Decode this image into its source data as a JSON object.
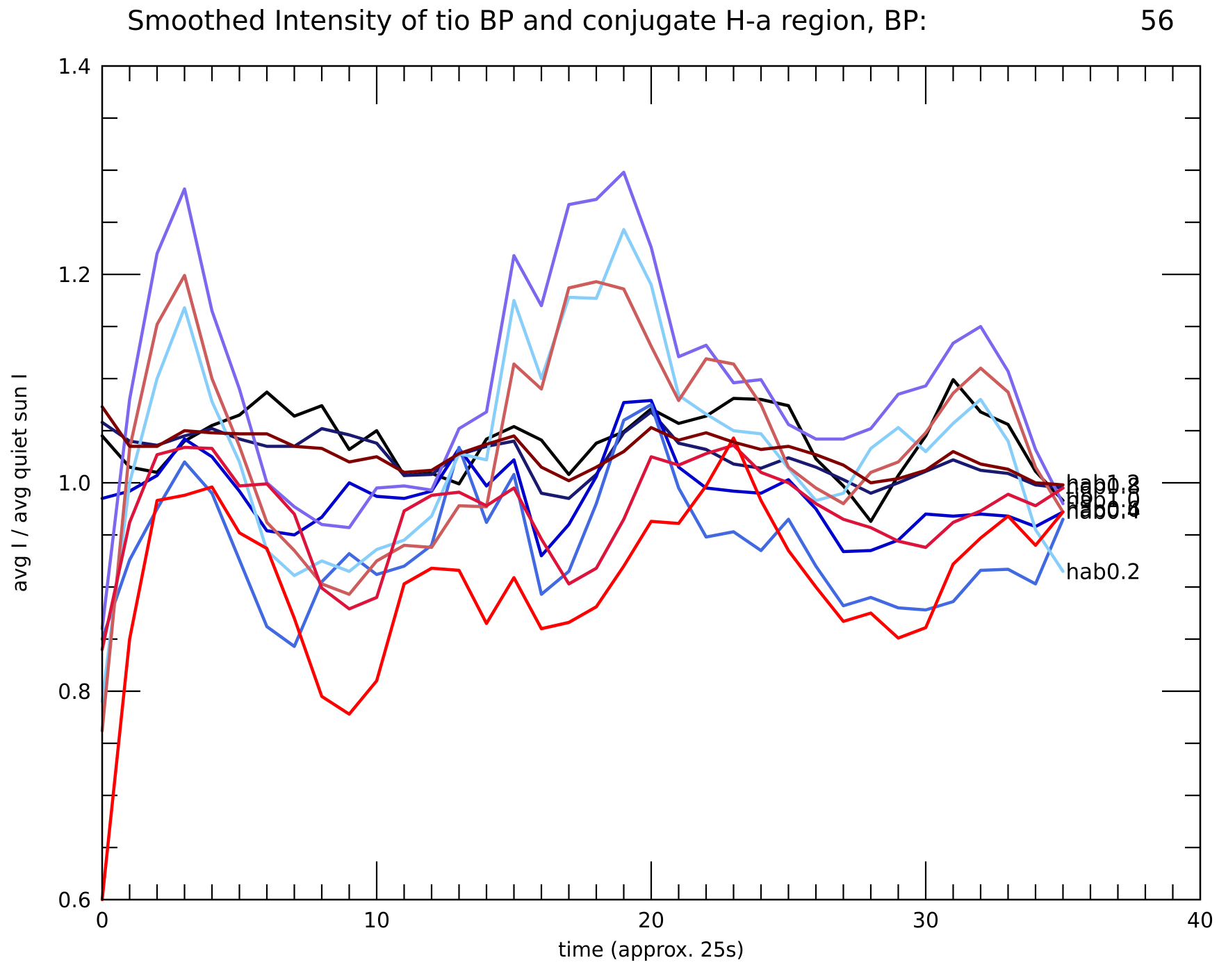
{
  "chart_data": {
    "type": "line",
    "title": "Smoothed Intensity of tio BP and conjugate H-a region, BP:",
    "title_value": "56",
    "xlabel": "time (approx. 25s)",
    "ylabel": "avg I / avg quiet sun I",
    "xlim": [
      0,
      40
    ],
    "ylim": [
      0.6,
      1.4
    ],
    "x_ticks": [
      "0",
      "10",
      "20",
      "30",
      "40"
    ],
    "y_ticks": [
      "0.6",
      "0.8",
      "1.0",
      "1.2",
      "1.4"
    ],
    "grid": false,
    "x": [
      0,
      1,
      2,
      3,
      4,
      5,
      6,
      7,
      8,
      9,
      10,
      11,
      12,
      13,
      14,
      15,
      16,
      17,
      18,
      19,
      20,
      21,
      22,
      23,
      24,
      25,
      26,
      27,
      28,
      29,
      30,
      31,
      32,
      33,
      34,
      35
    ],
    "series": [
      {
        "color": "#000000",
        "values": [
          1.045,
          1.015,
          1.01,
          1.04,
          1.055,
          1.065,
          1.087,
          1.064,
          1.074,
          1.032,
          1.05,
          1.007,
          1.009,
          0.999,
          1.042,
          1.054,
          1.041,
          1.008,
          1.038,
          1.049,
          1.071,
          1.057,
          1.064,
          1.081,
          1.08,
          1.074,
          1.023,
          0.997,
          0.963,
          1.007,
          1.045,
          1.099,
          1.068,
          1.056,
          1.011,
          0.983
        ]
      },
      {
        "color": "#191970",
        "values": [
          1.058,
          1.04,
          1.036,
          1.045,
          1.052,
          1.042,
          1.035,
          1.035,
          1.052,
          1.046,
          1.038,
          1.007,
          1.008,
          1.027,
          1.035,
          1.04,
          0.99,
          0.985,
          1.008,
          1.048,
          1.068,
          1.038,
          1.032,
          1.018,
          1.014,
          1.024,
          1.015,
          1.003,
          0.99,
          1.0,
          1.011,
          1.022,
          1.012,
          1.009,
          0.998,
          0.995
        ]
      },
      {
        "color": "#0000CD",
        "values": [
          0.985,
          0.992,
          1.007,
          1.042,
          1.025,
          0.992,
          0.954,
          0.95,
          0.967,
          1.0,
          0.987,
          0.985,
          0.992,
          1.033,
          0.997,
          1.022,
          0.93,
          0.96,
          1.006,
          1.077,
          1.079,
          1.015,
          0.995,
          0.992,
          0.99,
          1.003,
          0.975,
          0.934,
          0.935,
          0.945,
          0.97,
          0.968,
          0.97,
          0.968,
          0.958,
          0.972
        ]
      },
      {
        "color": "#4169E1",
        "values": [
          0.85,
          0.926,
          0.975,
          1.02,
          0.99,
          0.926,
          0.862,
          0.843,
          0.905,
          0.932,
          0.912,
          0.92,
          0.94,
          1.034,
          0.962,
          1.008,
          0.893,
          0.915,
          0.98,
          1.06,
          1.075,
          0.995,
          0.948,
          0.953,
          0.935,
          0.965,
          0.92,
          0.882,
          0.89,
          0.88,
          0.878,
          0.886,
          0.916,
          0.917,
          0.903,
          0.965
        ]
      },
      {
        "color": "#87CEFA",
        "values": [
          0.79,
          1.0,
          1.1,
          1.168,
          1.078,
          1.02,
          0.935,
          0.911,
          0.925,
          0.915,
          0.936,
          0.945,
          0.968,
          1.028,
          1.022,
          1.175,
          1.1,
          1.178,
          1.177,
          1.243,
          1.19,
          1.084,
          1.066,
          1.05,
          1.047,
          1.014,
          0.983,
          0.99,
          1.033,
          1.053,
          1.03,
          1.057,
          1.08,
          1.04,
          0.955,
          0.915
        ]
      },
      {
        "color": "#7B68EE",
        "values": [
          0.86,
          1.08,
          1.22,
          1.282,
          1.165,
          1.09,
          1.0,
          0.977,
          0.96,
          0.957,
          0.995,
          0.997,
          0.993,
          1.052,
          1.068,
          1.218,
          1.17,
          1.267,
          1.272,
          1.298,
          1.226,
          1.121,
          1.132,
          1.096,
          1.099,
          1.056,
          1.042,
          1.042,
          1.052,
          1.085,
          1.093,
          1.134,
          1.15,
          1.107,
          1.032,
          0.98
        ]
      },
      {
        "color": "#CD5C5C",
        "values": [
          0.762,
          1.033,
          1.152,
          1.199,
          1.1,
          1.035,
          0.962,
          0.935,
          0.903,
          0.893,
          0.925,
          0.94,
          0.938,
          0.978,
          0.977,
          1.114,
          1.09,
          1.187,
          1.193,
          1.186,
          1.131,
          1.079,
          1.119,
          1.114,
          1.075,
          1.015,
          0.995,
          0.98,
          1.01,
          1.02,
          1.048,
          1.086,
          1.11,
          1.087,
          1.015,
          0.972
        ]
      },
      {
        "color": "#DC143C",
        "values": [
          0.84,
          0.962,
          1.027,
          1.034,
          1.033,
          0.997,
          0.999,
          0.97,
          0.899,
          0.879,
          0.89,
          0.973,
          0.988,
          0.991,
          0.978,
          0.995,
          0.946,
          0.903,
          0.918,
          0.965,
          1.025,
          1.017,
          1.028,
          1.036,
          1.01,
          1.0,
          0.98,
          0.965,
          0.957,
          0.944,
          0.938,
          0.962,
          0.973,
          0.989,
          0.978,
          0.995
        ]
      },
      {
        "color": "#FF0000",
        "values": [
          0.6,
          0.85,
          0.983,
          0.988,
          0.996,
          0.952,
          0.937,
          0.87,
          0.795,
          0.778,
          0.81,
          0.903,
          0.918,
          0.916,
          0.865,
          0.909,
          0.86,
          0.866,
          0.881,
          0.92,
          0.963,
          0.961,
          0.997,
          1.043,
          0.983,
          0.935,
          0.9,
          0.867,
          0.875,
          0.851,
          0.861,
          0.922,
          0.947,
          0.968,
          0.94,
          0.972
        ]
      },
      {
        "color": "#800000",
        "values": [
          1.073,
          1.035,
          1.035,
          1.05,
          1.048,
          1.047,
          1.047,
          1.035,
          1.033,
          1.02,
          1.025,
          1.01,
          1.012,
          1.028,
          1.037,
          1.045,
          1.015,
          1.002,
          1.015,
          1.03,
          1.053,
          1.041,
          1.048,
          1.039,
          1.032,
          1.035,
          1.027,
          1.017,
          1.0,
          1.004,
          1.012,
          1.03,
          1.018,
          1.013,
          1.0,
          0.998
        ]
      }
    ],
    "end_labels": [
      {
        "text": "hab1.2",
        "y": 1.0
      },
      {
        "text": "hab0.8",
        "y": 0.997
      },
      {
        "text": "tio",
        "y": 0.987
      },
      {
        "text": "hab1.0",
        "y": 0.984
      },
      {
        "text": "hab0.6",
        "y": 0.975
      },
      {
        "text": "hab0.4",
        "y": 0.973
      },
      {
        "text": "hab0.2",
        "y": 0.915
      }
    ]
  }
}
